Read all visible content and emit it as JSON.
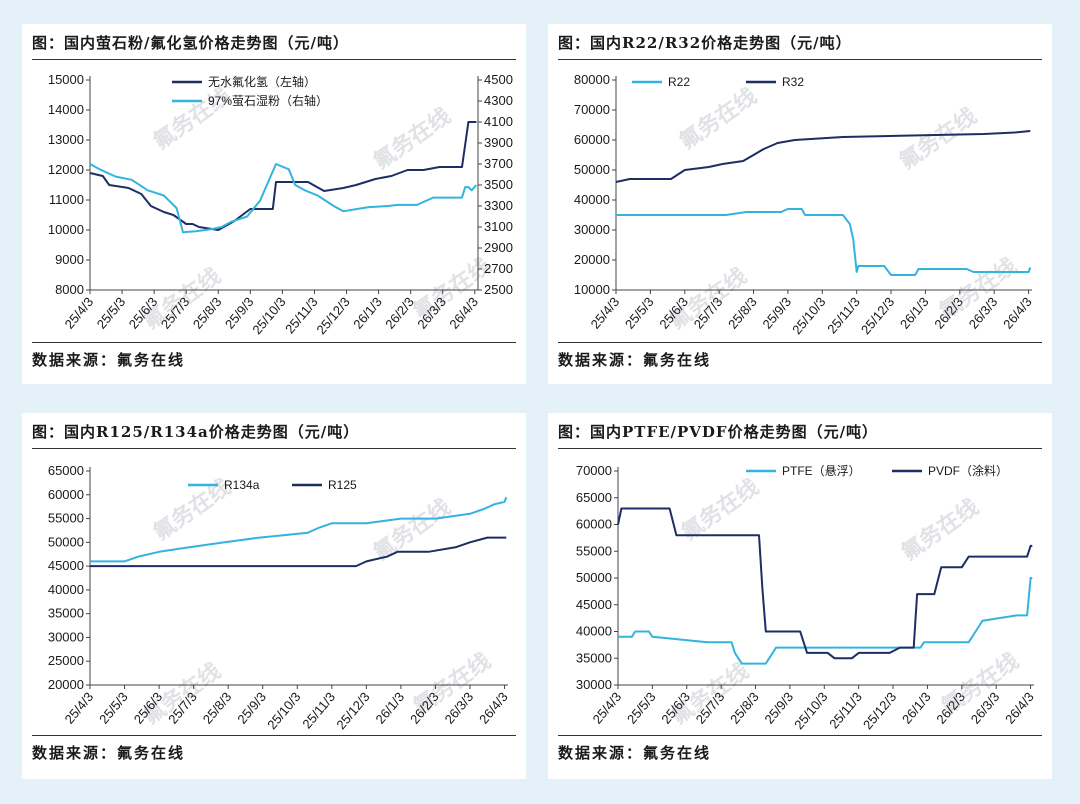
{
  "panels": [
    {
      "title": "图：国内萤石粉/氟化氢价格走势图（元/吨）",
      "source": "数据来源：氟务在线"
    },
    {
      "title": "图：国内R22/R32价格走势图（元/吨）",
      "source": "数据来源：氟务在线"
    },
    {
      "title": "图：国内R125/R134a价格走势图（元/吨）",
      "source": "数据来源：氟务在线"
    },
    {
      "title": "图：国内PTFE/PVDF价格走势图（元/吨）",
      "source": "数据来源：氟务在线"
    }
  ],
  "watermark": "氟务在线",
  "chart_data": [
    {
      "type": "line",
      "x": [
        "25/4/3",
        "25/5/3",
        "25/6/3",
        "25/7/3",
        "25/8/3",
        "25/9/3",
        "25/10/3",
        "25/11/3",
        "25/12/3",
        "26/1/3",
        "26/2/3",
        "26/3/3",
        "26/4/3"
      ],
      "xlim": [
        0,
        12.1
      ],
      "ylim": [
        8000,
        15000
      ],
      "yticks": [
        8000,
        9000,
        10000,
        11000,
        12000,
        13000,
        14000,
        15000
      ],
      "y2lim": [
        2500,
        4500
      ],
      "y2ticks": [
        2500,
        2700,
        2900,
        3100,
        3300,
        3500,
        3700,
        3900,
        4100,
        4300,
        4500
      ],
      "legend_position": "top",
      "series": [
        {
          "name": "无水氟化氢（左轴）",
          "axis": "left",
          "color": "#1c2e63",
          "points": [
            [
              0,
              11900
            ],
            [
              0.4,
              11800
            ],
            [
              0.6,
              11500
            ],
            [
              1.2,
              11400
            ],
            [
              1.6,
              11200
            ],
            [
              1.9,
              10800
            ],
            [
              2.3,
              10600
            ],
            [
              2.6,
              10500
            ],
            [
              3.0,
              10200
            ],
            [
              3.2,
              10200
            ],
            [
              3.4,
              10100
            ],
            [
              4.0,
              10000
            ],
            [
              4.5,
              10300
            ],
            [
              5.0,
              10700
            ],
            [
              5.7,
              10700
            ],
            [
              5.8,
              11600
            ],
            [
              6.8,
              11600
            ],
            [
              7.3,
              11300
            ],
            [
              7.9,
              11400
            ],
            [
              8.3,
              11500
            ],
            [
              8.9,
              11700
            ],
            [
              9.4,
              11800
            ],
            [
              9.9,
              12000
            ],
            [
              10.4,
              12000
            ],
            [
              10.9,
              12100
            ],
            [
              11.6,
              12100
            ],
            [
              11.8,
              13600
            ],
            [
              12.05,
              13600
            ]
          ]
        },
        {
          "name": "97%萤石湿粉（右轴）",
          "axis": "right",
          "color": "#33b4e0",
          "points": [
            [
              0,
              3700
            ],
            [
              0.3,
              3650
            ],
            [
              0.8,
              3580
            ],
            [
              1.3,
              3550
            ],
            [
              1.8,
              3450
            ],
            [
              2.3,
              3400
            ],
            [
              2.7,
              3280
            ],
            [
              2.9,
              3050
            ],
            [
              3.3,
              3060
            ],
            [
              3.8,
              3080
            ],
            [
              4.1,
              3100
            ],
            [
              4.4,
              3150
            ],
            [
              4.9,
              3200
            ],
            [
              5.3,
              3350
            ],
            [
              5.8,
              3700
            ],
            [
              6.2,
              3650
            ],
            [
              6.4,
              3500
            ],
            [
              6.7,
              3450
            ],
            [
              7.1,
              3400
            ],
            [
              7.6,
              3300
            ],
            [
              7.9,
              3250
            ],
            [
              8.3,
              3270
            ],
            [
              8.7,
              3290
            ],
            [
              9.3,
              3300
            ],
            [
              9.6,
              3310
            ],
            [
              10.2,
              3310
            ],
            [
              10.7,
              3380
            ],
            [
              11.6,
              3380
            ],
            [
              11.7,
              3480
            ],
            [
              11.8,
              3480
            ],
            [
              11.9,
              3450
            ],
            [
              12.05,
              3500
            ]
          ]
        }
      ]
    },
    {
      "type": "line",
      "x": [
        "25/4/3",
        "25/5/3",
        "25/6/3",
        "25/7/3",
        "25/8/3",
        "25/9/3",
        "25/10/3",
        "25/11/3",
        "25/12/3",
        "26/1/3",
        "26/2/3",
        "26/3/3",
        "26/4/3"
      ],
      "xlim": [
        0,
        12.1
      ],
      "ylim": [
        10000,
        80000
      ],
      "yticks": [
        10000,
        20000,
        30000,
        40000,
        50000,
        60000,
        70000,
        80000
      ],
      "legend_position": "top-left",
      "series": [
        {
          "name": "R22",
          "color": "#33b4e0",
          "points": [
            [
              0,
              35000
            ],
            [
              3.2,
              35000
            ],
            [
              3.8,
              36000
            ],
            [
              4.8,
              36000
            ],
            [
              5.0,
              37000
            ],
            [
              5.4,
              37000
            ],
            [
              5.5,
              35000
            ],
            [
              6.6,
              35000
            ],
            [
              6.8,
              32000
            ],
            [
              6.9,
              27000
            ],
            [
              7.0,
              16000
            ],
            [
              7.05,
              18000
            ],
            [
              7.8,
              18000
            ],
            [
              8.0,
              15000
            ],
            [
              8.7,
              15000
            ],
            [
              8.8,
              17000
            ],
            [
              10.2,
              17000
            ],
            [
              10.4,
              16000
            ],
            [
              12.0,
              16000
            ],
            [
              12.05,
              17500
            ]
          ]
        },
        {
          "name": "R32",
          "color": "#1c2e63",
          "points": [
            [
              0,
              46000
            ],
            [
              0.4,
              47000
            ],
            [
              1.6,
              47000
            ],
            [
              2.0,
              50000
            ],
            [
              2.7,
              51000
            ],
            [
              3.1,
              52000
            ],
            [
              3.7,
              53000
            ],
            [
              4.3,
              57000
            ],
            [
              4.7,
              59000
            ],
            [
              5.2,
              60000
            ],
            [
              6.6,
              61000
            ],
            [
              8.6,
              61500
            ],
            [
              10.7,
              62000
            ],
            [
              11.6,
              62500
            ],
            [
              12.05,
              63000
            ]
          ]
        }
      ]
    },
    {
      "type": "line",
      "x": [
        "25/4/3",
        "25/5/3",
        "25/6/3",
        "25/7/3",
        "25/8/3",
        "25/9/3",
        "25/10/3",
        "25/11/3",
        "25/12/3",
        "26/1/3",
        "26/2/3",
        "26/3/3",
        "26/4/3"
      ],
      "xlim": [
        0,
        12.1
      ],
      "ylim": [
        20000,
        65000
      ],
      "yticks": [
        20000,
        25000,
        30000,
        35000,
        40000,
        45000,
        50000,
        55000,
        60000,
        65000
      ],
      "legend_position": "top",
      "series": [
        {
          "name": "R134a",
          "color": "#33b4e0",
          "points": [
            [
              0,
              46000
            ],
            [
              1.0,
              46000
            ],
            [
              1.4,
              47000
            ],
            [
              2.0,
              48000
            ],
            [
              2.9,
              49000
            ],
            [
              3.9,
              50000
            ],
            [
              4.9,
              51000
            ],
            [
              5.6,
              51500
            ],
            [
              6.3,
              52000
            ],
            [
              6.6,
              53000
            ],
            [
              7.0,
              54000
            ],
            [
              8.0,
              54000
            ],
            [
              9.0,
              55000
            ],
            [
              10.0,
              55000
            ],
            [
              11.0,
              56000
            ],
            [
              11.4,
              57000
            ],
            [
              11.7,
              58000
            ],
            [
              12.0,
              58500
            ],
            [
              12.05,
              59500
            ]
          ]
        },
        {
          "name": "R125",
          "color": "#1c2e63",
          "points": [
            [
              0,
              45000
            ],
            [
              7.7,
              45000
            ],
            [
              8.0,
              46000
            ],
            [
              8.6,
              47000
            ],
            [
              8.9,
              48000
            ],
            [
              9.8,
              48000
            ],
            [
              10.6,
              49000
            ],
            [
              11.0,
              50000
            ],
            [
              11.5,
              51000
            ],
            [
              12.05,
              51000
            ]
          ]
        }
      ]
    },
    {
      "type": "line",
      "x": [
        "25/4/3",
        "25/5/3",
        "25/6/3",
        "25/7/3",
        "25/8/3",
        "25/9/3",
        "25/10/3",
        "25/11/3",
        "25/12/3",
        "26/1/3",
        "26/2/3",
        "26/3/3",
        "26/4/3"
      ],
      "xlim": [
        0,
        12.1
      ],
      "ylim": [
        30000,
        70000
      ],
      "yticks": [
        30000,
        35000,
        40000,
        45000,
        50000,
        55000,
        60000,
        65000,
        70000
      ],
      "legend_position": "top",
      "series": [
        {
          "name": "PTFE（悬浮）",
          "color": "#33b4e0",
          "points": [
            [
              0,
              39000
            ],
            [
              0.4,
              39000
            ],
            [
              0.5,
              40000
            ],
            [
              0.9,
              40000
            ],
            [
              1.0,
              39000
            ],
            [
              2.6,
              38000
            ],
            [
              3.3,
              38000
            ],
            [
              3.4,
              36000
            ],
            [
              3.6,
              34000
            ],
            [
              4.3,
              34000
            ],
            [
              4.6,
              37000
            ],
            [
              7.4,
              37000
            ],
            [
              8.8,
              37000
            ],
            [
              8.9,
              38000
            ],
            [
              10.2,
              38000
            ],
            [
              10.4,
              40000
            ],
            [
              10.6,
              42000
            ],
            [
              11.6,
              43000
            ],
            [
              11.9,
              43000
            ],
            [
              12.0,
              50000
            ],
            [
              12.05,
              50000
            ]
          ]
        },
        {
          "name": "PVDF（涂料）",
          "color": "#1c2e63",
          "points": [
            [
              0,
              60000
            ],
            [
              0.1,
              63000
            ],
            [
              1.5,
              63000
            ],
            [
              1.7,
              58000
            ],
            [
              4.1,
              58000
            ],
            [
              4.2,
              48000
            ],
            [
              4.3,
              40000
            ],
            [
              5.3,
              40000
            ],
            [
              5.5,
              36000
            ],
            [
              6.1,
              36000
            ],
            [
              6.3,
              35000
            ],
            [
              6.8,
              35000
            ],
            [
              7.0,
              36000
            ],
            [
              7.9,
              36000
            ],
            [
              8.2,
              37000
            ],
            [
              8.6,
              37000
            ],
            [
              8.7,
              47000
            ],
            [
              9.2,
              47000
            ],
            [
              9.4,
              52000
            ],
            [
              10.0,
              52000
            ],
            [
              10.2,
              54000
            ],
            [
              11.9,
              54000
            ],
            [
              12.0,
              56000
            ],
            [
              12.05,
              56000
            ]
          ]
        }
      ]
    }
  ]
}
